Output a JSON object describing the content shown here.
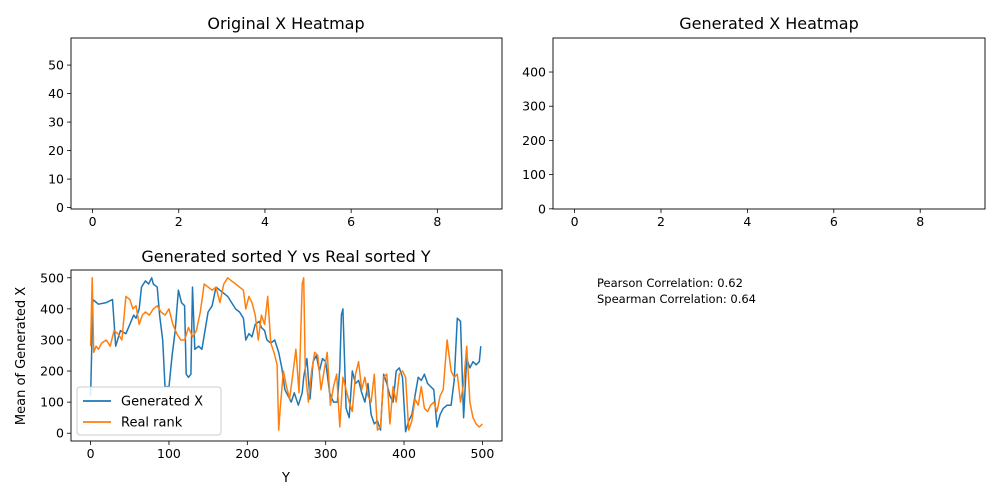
{
  "chart_data": [
    {
      "type": "heatmap",
      "title": "Original X Heatmap",
      "xlabel": "",
      "ylabel": "",
      "x_ticks": [
        0,
        2,
        4,
        6,
        8
      ],
      "y_ticks": [
        0,
        10,
        20,
        30,
        40,
        50
      ],
      "xlim": [
        -0.5,
        9.5
      ],
      "ylim": [
        59.5,
        -0.5
      ],
      "columns": 10,
      "rows": 60,
      "colormap": "viridis",
      "interpolation": "bicubic"
    },
    {
      "type": "heatmap",
      "title": "Generated X Heatmap",
      "xlabel": "",
      "ylabel": "",
      "x_ticks": [
        0,
        2,
        4,
        6,
        8
      ],
      "y_ticks": [
        0,
        100,
        200,
        300,
        400
      ],
      "xlim": [
        -0.5,
        9.5
      ],
      "ylim": [
        499.5,
        -0.5
      ],
      "columns": 10,
      "rows": 500,
      "colormap": "viridis",
      "interpolation": "bicubic"
    },
    {
      "type": "line",
      "title": "Generated sorted Y vs Real sorted Y",
      "xlabel": "Y",
      "ylabel": "Mean of Generated X",
      "xlim": [
        -25,
        525
      ],
      "ylim": [
        -25,
        525
      ],
      "x_ticks": [
        0,
        100,
        200,
        300,
        400,
        500
      ],
      "y_ticks": [
        0,
        100,
        200,
        300,
        400,
        500
      ],
      "grid": false,
      "legend": "lower-left",
      "series": [
        {
          "name": "Generated X",
          "color": "#1f77b4",
          "points": [
            [
              0,
              120
            ],
            [
              3,
              430
            ],
            [
              10,
              415
            ],
            [
              20,
              420
            ],
            [
              28,
              430
            ],
            [
              32,
              280
            ],
            [
              38,
              330
            ],
            [
              45,
              320
            ],
            [
              50,
              350
            ],
            [
              55,
              380
            ],
            [
              58,
              370
            ],
            [
              62,
              400
            ],
            [
              65,
              470
            ],
            [
              70,
              490
            ],
            [
              74,
              480
            ],
            [
              78,
              500
            ],
            [
              80,
              480
            ],
            [
              85,
              470
            ],
            [
              88,
              380
            ],
            [
              92,
              300
            ],
            [
              95,
              150
            ],
            [
              100,
              150
            ],
            [
              104,
              250
            ],
            [
              108,
              330
            ],
            [
              112,
              460
            ],
            [
              116,
              420
            ],
            [
              120,
              410
            ],
            [
              122,
              190
            ],
            [
              125,
              180
            ],
            [
              128,
              190
            ],
            [
              130,
              470
            ],
            [
              133,
              270
            ],
            [
              138,
              280
            ],
            [
              142,
              270
            ],
            [
              150,
              390
            ],
            [
              155,
              410
            ],
            [
              160,
              470
            ],
            [
              165,
              460
            ],
            [
              170,
              450
            ],
            [
              175,
              440
            ],
            [
              180,
              420
            ],
            [
              185,
              400
            ],
            [
              190,
              390
            ],
            [
              195,
              370
            ],
            [
              198,
              300
            ],
            [
              202,
              320
            ],
            [
              206,
              310
            ],
            [
              210,
              350
            ],
            [
              215,
              360
            ],
            [
              218,
              340
            ],
            [
              222,
              330
            ],
            [
              225,
              300
            ],
            [
              230,
              290
            ],
            [
              235,
              300
            ],
            [
              240,
              260
            ],
            [
              244,
              210
            ],
            [
              248,
              140
            ],
            [
              252,
              120
            ],
            [
              256,
              100
            ],
            [
              260,
              130
            ],
            [
              265,
              90
            ],
            [
              270,
              130
            ],
            [
              272,
              180
            ],
            [
              276,
              240
            ],
            [
              280,
              110
            ],
            [
              284,
              230
            ],
            [
              288,
              250
            ],
            [
              292,
              200
            ],
            [
              296,
              240
            ],
            [
              300,
              230
            ],
            [
              305,
              130
            ],
            [
              310,
              100
            ],
            [
              315,
              100
            ],
            [
              318,
              210
            ],
            [
              320,
              380
            ],
            [
              322,
              400
            ],
            [
              326,
              80
            ],
            [
              330,
              50
            ],
            [
              334,
              200
            ],
            [
              338,
              160
            ],
            [
              342,
              170
            ],
            [
              346,
              130
            ],
            [
              350,
              100
            ],
            [
              354,
              160
            ],
            [
              358,
              60
            ],
            [
              362,
              30
            ],
            [
              366,
              40
            ],
            [
              370,
              10
            ],
            [
              374,
              190
            ],
            [
              378,
              160
            ],
            [
              382,
              120
            ],
            [
              386,
              100
            ],
            [
              390,
              200
            ],
            [
              394,
              210
            ],
            [
              398,
              180
            ],
            [
              402,
              5
            ],
            [
              406,
              40
            ],
            [
              410,
              60
            ],
            [
              414,
              120
            ],
            [
              418,
              180
            ],
            [
              422,
              170
            ],
            [
              426,
              190
            ],
            [
              430,
              160
            ],
            [
              434,
              150
            ],
            [
              438,
              140
            ],
            [
              442,
              20
            ],
            [
              446,
              60
            ],
            [
              450,
              80
            ],
            [
              455,
              90
            ],
            [
              460,
              90
            ],
            [
              464,
              170
            ],
            [
              468,
              370
            ],
            [
              472,
              360
            ],
            [
              476,
              50
            ],
            [
              480,
              240
            ],
            [
              484,
              210
            ],
            [
              488,
              230
            ],
            [
              492,
              220
            ],
            [
              496,
              230
            ],
            [
              498,
              280
            ]
          ]
        },
        {
          "name": "Real rank",
          "color": "#ff7f0e",
          "points": [
            [
              0,
              280
            ],
            [
              2,
              500
            ],
            [
              4,
              260
            ],
            [
              7,
              280
            ],
            [
              10,
              270
            ],
            [
              14,
              290
            ],
            [
              20,
              300
            ],
            [
              25,
              280
            ],
            [
              30,
              330
            ],
            [
              35,
              320
            ],
            [
              40,
              300
            ],
            [
              45,
              440
            ],
            [
              50,
              430
            ],
            [
              54,
              400
            ],
            [
              58,
              410
            ],
            [
              62,
              350
            ],
            [
              66,
              380
            ],
            [
              70,
              390
            ],
            [
              75,
              380
            ],
            [
              80,
              400
            ],
            [
              85,
              410
            ],
            [
              90,
              390
            ],
            [
              95,
              380
            ],
            [
              100,
              400
            ],
            [
              105,
              350
            ],
            [
              110,
              320
            ],
            [
              115,
              300
            ],
            [
              120,
              300
            ],
            [
              125,
              340
            ],
            [
              130,
              310
            ],
            [
              135,
              330
            ],
            [
              140,
              390
            ],
            [
              145,
              480
            ],
            [
              150,
              470
            ],
            [
              155,
              460
            ],
            [
              160,
              470
            ],
            [
              165,
              420
            ],
            [
              170,
              480
            ],
            [
              175,
              500
            ],
            [
              180,
              490
            ],
            [
              185,
              480
            ],
            [
              190,
              470
            ],
            [
              195,
              460
            ],
            [
              198,
              400
            ],
            [
              202,
              440
            ],
            [
              206,
              420
            ],
            [
              210,
              380
            ],
            [
              214,
              300
            ],
            [
              218,
              380
            ],
            [
              222,
              350
            ],
            [
              226,
              440
            ],
            [
              230,
              290
            ],
            [
              234,
              260
            ],
            [
              238,
              220
            ],
            [
              240,
              10
            ],
            [
              242,
              80
            ],
            [
              246,
              200
            ],
            [
              250,
              150
            ],
            [
              254,
              110
            ],
            [
              258,
              190
            ],
            [
              262,
              270
            ],
            [
              266,
              130
            ],
            [
              270,
              480
            ],
            [
              272,
              500
            ],
            [
              274,
              200
            ],
            [
              278,
              100
            ],
            [
              282,
              200
            ],
            [
              286,
              260
            ],
            [
              290,
              250
            ],
            [
              294,
              140
            ],
            [
              298,
              200
            ],
            [
              302,
              260
            ],
            [
              306,
              90
            ],
            [
              310,
              150
            ],
            [
              314,
              190
            ],
            [
              318,
              20
            ],
            [
              322,
              180
            ],
            [
              326,
              140
            ],
            [
              330,
              100
            ],
            [
              334,
              70
            ],
            [
              338,
              190
            ],
            [
              342,
              230
            ],
            [
              346,
              140
            ],
            [
              350,
              180
            ],
            [
              354,
              120
            ],
            [
              358,
              100
            ],
            [
              362,
              190
            ],
            [
              366,
              10
            ],
            [
              370,
              20
            ],
            [
              374,
              180
            ],
            [
              378,
              190
            ],
            [
              382,
              30
            ],
            [
              386,
              150
            ],
            [
              390,
              100
            ],
            [
              394,
              190
            ],
            [
              398,
              200
            ],
            [
              402,
              180
            ],
            [
              406,
              10
            ],
            [
              410,
              40
            ],
            [
              414,
              110
            ],
            [
              418,
              90
            ],
            [
              422,
              150
            ],
            [
              426,
              80
            ],
            [
              430,
              70
            ],
            [
              434,
              90
            ],
            [
              438,
              100
            ],
            [
              442,
              70
            ],
            [
              446,
              120
            ],
            [
              450,
              140
            ],
            [
              455,
              300
            ],
            [
              460,
              200
            ],
            [
              464,
              180
            ],
            [
              468,
              190
            ],
            [
              472,
              100
            ],
            [
              476,
              160
            ],
            [
              480,
              280
            ],
            [
              484,
              100
            ],
            [
              488,
              50
            ],
            [
              492,
              30
            ],
            [
              496,
              20
            ],
            [
              500,
              30
            ]
          ]
        }
      ]
    }
  ],
  "notes": {
    "pearson": "Pearson Correlation: 0.62",
    "spearman": "Spearman Correlation: 0.64"
  }
}
